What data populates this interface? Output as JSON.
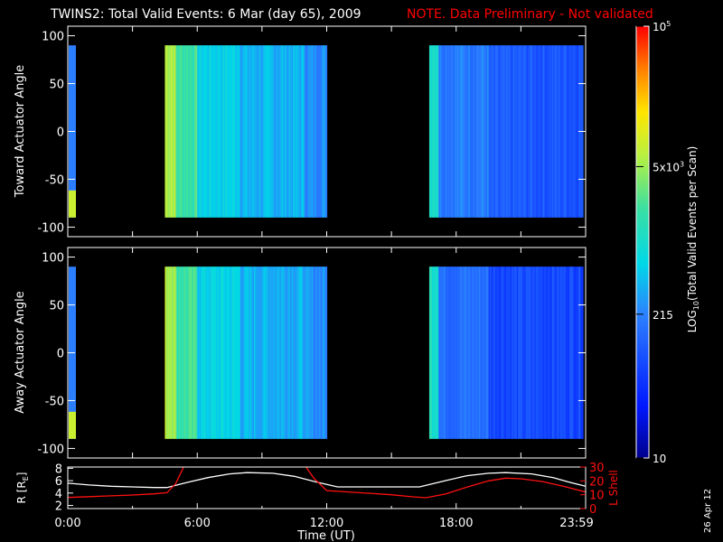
{
  "title": "TWINS2: Total Valid Events:  6 Mar (day  65), 2009",
  "note": "NOTE. Data Preliminary - Not validated",
  "stamp": "26 Apr 12",
  "colors": {
    "background": "#000000",
    "note": "#ff0000",
    "white_line": "#ffffff",
    "red_line": "#ff1010"
  },
  "chart_data": [
    {
      "type": "heatmap",
      "ylabel": "Toward Actuator Angle",
      "xlim_hours": [
        0,
        24
      ],
      "ylim": [
        -110,
        110
      ],
      "yticks": [
        "100",
        "50",
        "0",
        "-50",
        "-100"
      ],
      "data_extent_deg": [
        -90,
        90
      ],
      "data_intervals_hours": [
        [
          0,
          0.1
        ],
        [
          4.5,
          12.0
        ],
        [
          16.75,
          24
        ]
      ],
      "color_log10_by_time": [
        {
          "time": "4.5-5.0",
          "log10": 3.8
        },
        {
          "time": "5.0-6.0",
          "log10": 3.3
        },
        {
          "time": "6.0-8.0",
          "log10": 2.8
        },
        {
          "time": "8.0-11.0",
          "log10": 2.6
        },
        {
          "time": "11.0-12.0",
          "log10": 2.4
        },
        {
          "time": "16.75-17.2",
          "log10": 3.1
        },
        {
          "time": "17.2-19.5",
          "log10": 2.3
        },
        {
          "time": "19.5-23.9",
          "log10": 2.0
        }
      ]
    },
    {
      "type": "heatmap",
      "ylabel": "Away Actuator Angle",
      "xlim_hours": [
        0,
        24
      ],
      "ylim": [
        -110,
        110
      ],
      "yticks": [
        "100",
        "50",
        "0",
        "-50",
        "-100"
      ],
      "data_extent_deg": [
        -90,
        90
      ],
      "data_intervals_hours": [
        [
          0,
          0.1
        ],
        [
          4.5,
          12.0
        ],
        [
          16.75,
          24
        ]
      ],
      "color_log10_by_time": [
        {
          "time": "4.5-5.0",
          "log10": 3.8
        },
        {
          "time": "5.0-6.0",
          "log10": 3.3
        },
        {
          "time": "6.0-8.0",
          "log10": 2.8
        },
        {
          "time": "8.0-11.0",
          "log10": 2.6
        },
        {
          "time": "11.0-12.0",
          "log10": 2.4
        },
        {
          "time": "16.75-17.2",
          "log10": 3.1
        },
        {
          "time": "17.2-19.5",
          "log10": 2.2
        },
        {
          "time": "19.5-23.9",
          "log10": 1.9
        }
      ]
    },
    {
      "type": "line",
      "ylabel": "R [RE]",
      "ylabel_main": "R [R",
      "ylabel_sub": "E",
      "ylabel_close": "]",
      "ylabel2": "L Shell",
      "ylim": [
        1.5,
        8.2
      ],
      "ylim2": [
        0,
        30
      ],
      "yticks_left": [
        "8",
        "6",
        "4",
        "2"
      ],
      "yticks_right": [
        "30",
        "20",
        "10",
        "0"
      ],
      "xticks": [
        "0:00",
        "6:00",
        "12:00",
        "18:00",
        "23:59"
      ],
      "xlabel": "Time (UT)",
      "series": [
        {
          "name": "R",
          "color": "#ffffff",
          "x": [
            0,
            1,
            2,
            3,
            4,
            4.6,
            5.5,
            6.5,
            7.5,
            8.3,
            9.5,
            10.5,
            11.5,
            12.5,
            13.5,
            14.5,
            15.5,
            16.3,
            17.5,
            18.5,
            19.5,
            20.3,
            21.5,
            22.5,
            23.2,
            24
          ],
          "y": [
            5.6,
            5.3,
            5.1,
            5.0,
            4.9,
            4.9,
            5.7,
            6.5,
            7.1,
            7.3,
            7.2,
            6.7,
            5.8,
            5.0,
            5.0,
            5.0,
            5.0,
            5.0,
            6.0,
            6.8,
            7.2,
            7.3,
            7.1,
            6.5,
            5.8,
            5.1
          ]
        },
        {
          "name": "L Shell",
          "color": "#ff1010",
          "x": [
            0,
            1,
            2,
            3,
            4,
            4.6,
            5.0,
            5.4,
            11.0,
            11.4,
            12.0,
            13.0,
            14.0,
            15.0,
            16.0,
            16.6,
            17.5,
            18.5,
            19.5,
            20.3,
            21.0,
            22.0,
            23.0,
            24
          ],
          "y": [
            8,
            8.6,
            9.2,
            9.8,
            10.6,
            11.5,
            18,
            31,
            31,
            22,
            13,
            12,
            11,
            10,
            8.5,
            7.8,
            10.5,
            15.5,
            20,
            22,
            21.5,
            19.5,
            16,
            12
          ]
        }
      ]
    }
  ],
  "colorbar": {
    "label": "LOG10(Total Valid Events per Scan)",
    "label_main": "LOG",
    "label_sub": "10",
    "label_rest": "(Total Valid Events per Scan)",
    "range_log10": [
      1,
      5
    ],
    "ticks": [
      {
        "value": 5,
        "base": "10",
        "exp": "5"
      },
      {
        "value": 3.699,
        "base": "5x10",
        "exp": "3"
      },
      {
        "value": 2.332,
        "base": "215",
        "exp": ""
      },
      {
        "value": 1,
        "base": "10",
        "exp": ""
      }
    ]
  }
}
